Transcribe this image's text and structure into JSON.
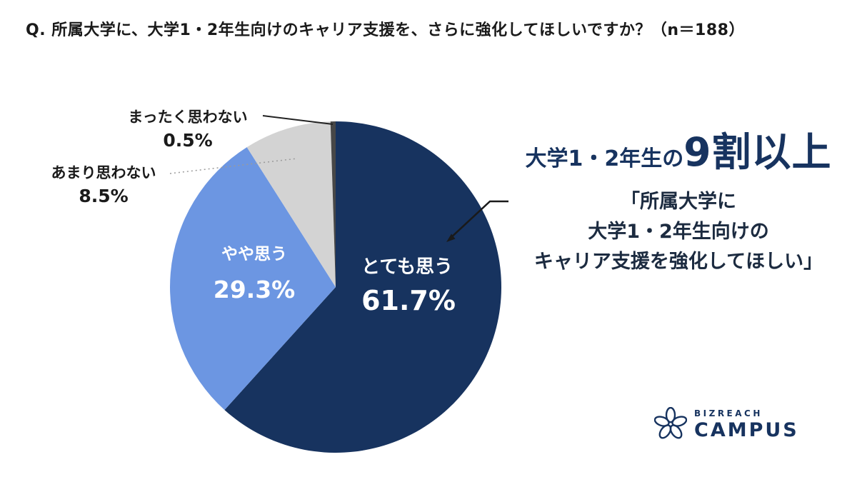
{
  "title": "Q. 所属大学に、大学1・2年生向けのキャリア支援を、さらに強化してほしいですか？（n＝188）",
  "chart_data": {
    "type": "pie",
    "labels": [
      "とても思う",
      "やや思う",
      "あまり思わない",
      "まったく思わない"
    ],
    "values": [
      61.7,
      29.3,
      8.5,
      0.5
    ],
    "value_labels": [
      "61.7%",
      "29.3%",
      "8.5%",
      "0.5%"
    ],
    "colors": [
      "#17335F",
      "#6C96E2",
      "#D3D3D3",
      "#474747"
    ],
    "start_angle_deg": -90,
    "direction": "clockwise",
    "legend_position": "none",
    "title": "Q. 所属大学に、大学1・2年生向けのキャリア支援を、さらに強化してほしいですか？（n＝188）"
  },
  "annotation": {
    "headline_prefix": "大学1・2年生の",
    "headline_emphasis": "9割以上",
    "quote_line1": "「所属大学に",
    "quote_line2": "大学1・2年生向けの",
    "quote_line3": "キャリア支援を強化してほしい」"
  },
  "logo": {
    "brand": "BIZREACH",
    "product": "CAMPUS"
  },
  "colors": {
    "navy": "#17335F",
    "light_blue": "#6C96E2",
    "light_gray": "#D3D3D3",
    "sliver_gray": "#474747"
  }
}
